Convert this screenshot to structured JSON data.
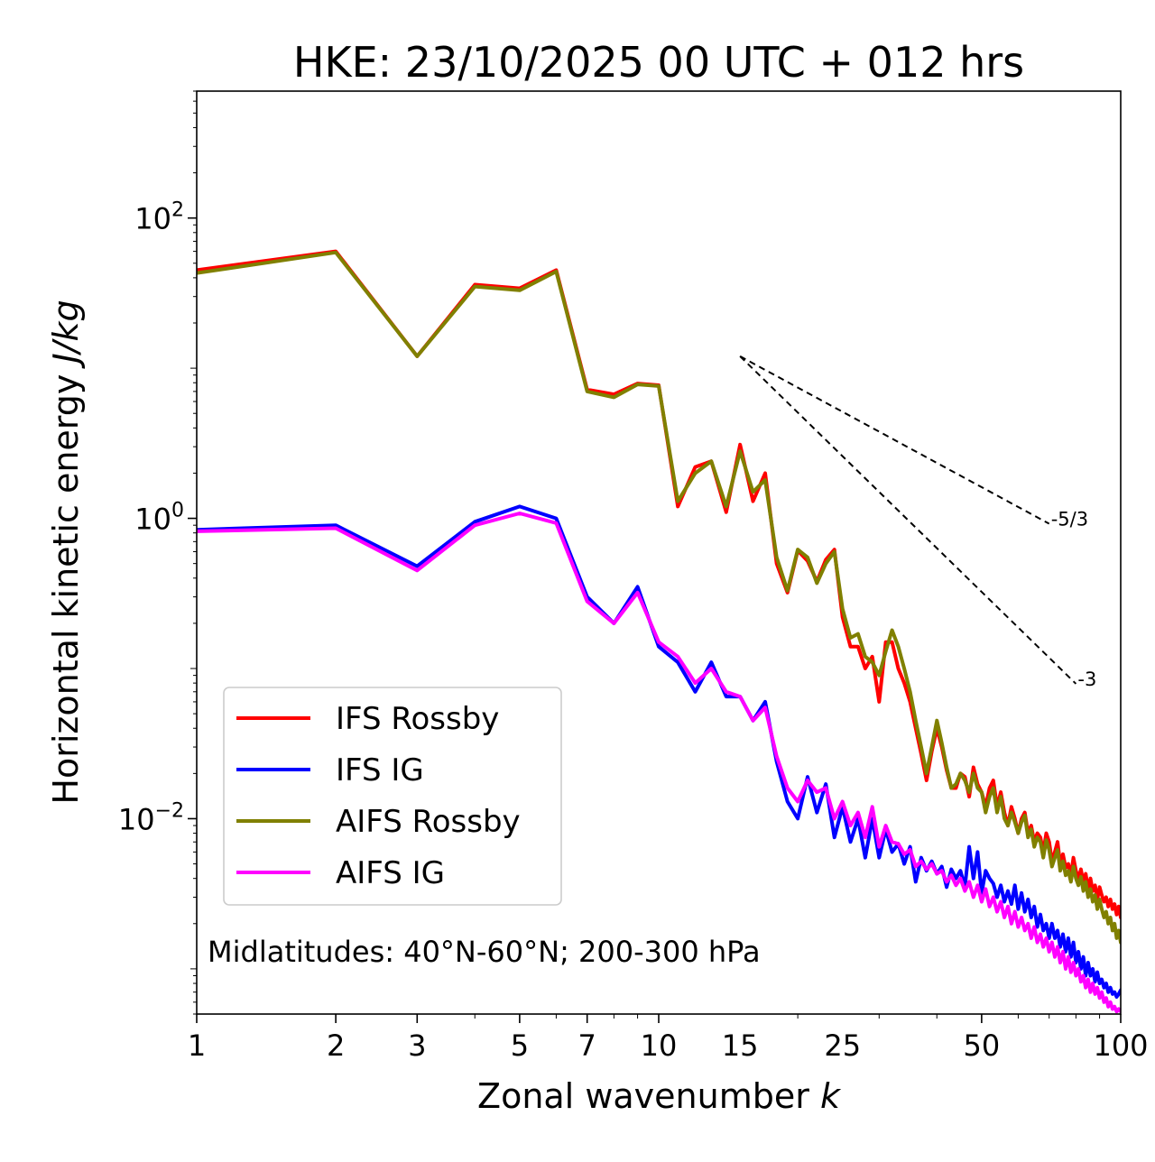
{
  "chart_data": {
    "type": "line",
    "title": "HKE: 23/10/2025 00 UTC + 012 hrs",
    "xlabel_text": "Zonal wavenumber ",
    "xlabel_var": "k",
    "ylabel_text": "Horizontal kinetic energy ",
    "ylabel_unit": "J/kg",
    "xscale": "log",
    "yscale": "log",
    "xlim": [
      1,
      100
    ],
    "ylim": [
      0.0005,
      700
    ],
    "xticks": [
      1,
      2,
      3,
      5,
      7,
      10,
      15,
      25,
      50,
      100
    ],
    "xtick_labels": [
      "1",
      "2",
      "3",
      "5",
      "7",
      "10",
      "15",
      "25",
      "50",
      "100"
    ],
    "yticks": [
      {
        "value": 100,
        "base": "10",
        "exp": "2"
      },
      {
        "value": 1,
        "base": "10",
        "exp": "0"
      },
      {
        "value": 0.01,
        "base": "10",
        "exp": "−2"
      }
    ],
    "legend_position": "lower-left",
    "annotation": "Midlatitudes: 40°N-60°N; 200-300 hPa",
    "reference_lines": [
      {
        "label": "-5/3",
        "slope": -1.6667,
        "x_start": 15,
        "x_end": 70,
        "y_start": 12
      },
      {
        "label": "-3",
        "slope": -3,
        "x_start": 15,
        "x_end": 80,
        "y_start": 12
      }
    ],
    "x": [
      1,
      2,
      3,
      4,
      5,
      6,
      7,
      8,
      9,
      10,
      11,
      12,
      13,
      14,
      15,
      16,
      17,
      18,
      19,
      20,
      21,
      22,
      23,
      24,
      25,
      26,
      27,
      28,
      29,
      30,
      31,
      32,
      33,
      34,
      35,
      36,
      37,
      38,
      39,
      40,
      41,
      42,
      43,
      44,
      45,
      46,
      47,
      48,
      49,
      50,
      51,
      52,
      53,
      54,
      55,
      56,
      57,
      58,
      59,
      60,
      61,
      62,
      63,
      64,
      65,
      66,
      67,
      68,
      69,
      70,
      71,
      72,
      73,
      74,
      75,
      76,
      77,
      78,
      79,
      80,
      81,
      82,
      83,
      84,
      85,
      86,
      87,
      88,
      89,
      90,
      91,
      92,
      93,
      94,
      95,
      96,
      97,
      98,
      99,
      100
    ],
    "series": [
      {
        "name": "IFS Rossby",
        "color": "#ff0000",
        "values": [
          45,
          60,
          12,
          36,
          34,
          45,
          7.2,
          6.7,
          7.9,
          7.7,
          1.2,
          2.2,
          2.4,
          1.1,
          3.1,
          1.3,
          2,
          0.5,
          0.32,
          0.61,
          0.52,
          0.38,
          0.53,
          0.62,
          0.22,
          0.14,
          0.14,
          0.1,
          0.12,
          0.06,
          0.15,
          0.15,
          0.1,
          0.08,
          0.06,
          0.04,
          0.027,
          0.018,
          0.028,
          0.04,
          0.03,
          0.021,
          0.016,
          0.016,
          0.02,
          0.019,
          0.014,
          0.022,
          0.017,
          0.015,
          0.012,
          0.016,
          0.018,
          0.012,
          0.015,
          0.011,
          0.009,
          0.012,
          0.01,
          0.008,
          0.01,
          0.011,
          0.008,
          0.009,
          0.007,
          0.008,
          0.0075,
          0.006,
          0.008,
          0.007,
          0.0052,
          0.006,
          0.007,
          0.005,
          0.0058,
          0.0047,
          0.005,
          0.0042,
          0.0055,
          0.0045,
          0.004,
          0.0046,
          0.0038,
          0.0043,
          0.0034,
          0.004,
          0.0033,
          0.0036,
          0.0029,
          0.0035,
          0.0031,
          0.0028,
          0.003,
          0.0026,
          0.0029,
          0.0025,
          0.0027,
          0.0023,
          0.0026,
          0.0022
        ]
      },
      {
        "name": "IFS IG",
        "color": "#0000ff",
        "values": [
          0.84,
          0.9,
          0.48,
          0.95,
          1.2,
          1,
          0.3,
          0.2,
          0.35,
          0.14,
          0.11,
          0.07,
          0.11,
          0.065,
          0.065,
          0.045,
          0.06,
          0.024,
          0.013,
          0.01,
          0.019,
          0.011,
          0.017,
          0.0075,
          0.012,
          0.007,
          0.01,
          0.0055,
          0.01,
          0.0055,
          0.0085,
          0.006,
          0.0068,
          0.005,
          0.0065,
          0.0038,
          0.0055,
          0.0045,
          0.0052,
          0.0043,
          0.0048,
          0.0035,
          0.0046,
          0.004,
          0.0045,
          0.0035,
          0.0065,
          0.004,
          0.006,
          0.0032,
          0.0045,
          0.004,
          0.0037,
          0.003,
          0.0036,
          0.0028,
          0.0033,
          0.0027,
          0.0036,
          0.0025,
          0.0032,
          0.0024,
          0.0029,
          0.0022,
          0.0026,
          0.0019,
          0.0023,
          0.0018,
          0.002,
          0.0016,
          0.002,
          0.0016,
          0.0018,
          0.0014,
          0.0017,
          0.0013,
          0.0016,
          0.0012,
          0.0015,
          0.0011,
          0.0013,
          0.001,
          0.0012,
          0.0009,
          0.0011,
          0.0009,
          0.001,
          0.00082,
          0.00095,
          0.0008,
          0.00085,
          0.00075,
          0.0008,
          0.0007,
          0.00075,
          0.00068,
          0.0007,
          0.00065,
          0.00068,
          0.00072
        ]
      },
      {
        "name": "AIFS Rossby",
        "color": "#808000",
        "values": [
          43,
          59,
          12,
          35,
          33,
          44,
          7,
          6.4,
          7.8,
          7.6,
          1.3,
          2,
          2.4,
          1.2,
          2.8,
          1.5,
          1.8,
          0.55,
          0.33,
          0.62,
          0.55,
          0.37,
          0.5,
          0.6,
          0.25,
          0.16,
          0.17,
          0.12,
          0.11,
          0.09,
          0.13,
          0.18,
          0.14,
          0.1,
          0.07,
          0.045,
          0.03,
          0.02,
          0.03,
          0.045,
          0.032,
          0.022,
          0.016,
          0.017,
          0.02,
          0.018,
          0.015,
          0.02,
          0.016,
          0.015,
          0.011,
          0.014,
          0.016,
          0.011,
          0.014,
          0.01,
          0.009,
          0.011,
          0.0095,
          0.008,
          0.0095,
          0.0105,
          0.0075,
          0.0085,
          0.0065,
          0.0075,
          0.007,
          0.0055,
          0.0072,
          0.0062,
          0.0048,
          0.0055,
          0.0062,
          0.0045,
          0.0052,
          0.0042,
          0.0045,
          0.0038,
          0.0048,
          0.004,
          0.0036,
          0.0041,
          0.0033,
          0.0038,
          0.003,
          0.0034,
          0.0028,
          0.0031,
          0.0025,
          0.0029,
          0.0025,
          0.0022,
          0.0024,
          0.002,
          0.0022,
          0.0018,
          0.002,
          0.0016,
          0.0018,
          0.0015
        ]
      },
      {
        "name": "AIFS IG",
        "color": "#ff00ff",
        "values": [
          0.82,
          0.86,
          0.45,
          0.9,
          1.08,
          0.93,
          0.28,
          0.2,
          0.32,
          0.15,
          0.12,
          0.08,
          0.1,
          0.07,
          0.065,
          0.045,
          0.055,
          0.026,
          0.016,
          0.013,
          0.018,
          0.015,
          0.016,
          0.01,
          0.013,
          0.009,
          0.011,
          0.0075,
          0.012,
          0.0065,
          0.009,
          0.007,
          0.0068,
          0.0058,
          0.0062,
          0.0048,
          0.0052,
          0.0046,
          0.005,
          0.0043,
          0.0045,
          0.0038,
          0.0042,
          0.0036,
          0.004,
          0.0033,
          0.0038,
          0.003,
          0.0036,
          0.0028,
          0.0034,
          0.0026,
          0.003,
          0.0024,
          0.0028,
          0.0022,
          0.0026,
          0.002,
          0.0024,
          0.0019,
          0.0022,
          0.0018,
          0.002,
          0.0016,
          0.0019,
          0.0015,
          0.0017,
          0.0014,
          0.0016,
          0.0013,
          0.0015,
          0.0012,
          0.0014,
          0.0011,
          0.0013,
          0.001,
          0.0012,
          0.00095,
          0.0011,
          0.0009,
          0.001,
          0.00082,
          0.0009,
          0.00075,
          0.00085,
          0.0007,
          0.0008,
          0.00068,
          0.00075,
          0.00064,
          0.0007,
          0.0006,
          0.00064,
          0.00056,
          0.0006,
          0.00054,
          0.00056,
          0.00052,
          0.00054,
          0.00052
        ]
      }
    ]
  }
}
